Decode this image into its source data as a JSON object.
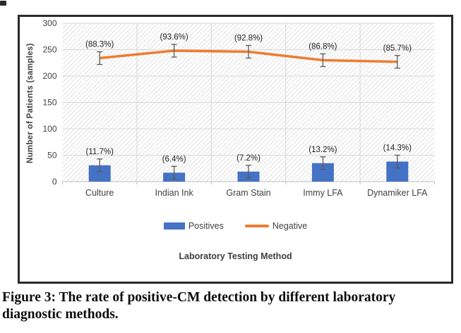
{
  "figure": {
    "caption": "Figure 3: The rate of positive-CM detection by different laboratory diagnostic methods."
  },
  "chart_data": {
    "type": "bar",
    "subtype": "combo-bar-line",
    "categories": [
      "Culture",
      "Indian Ink",
      "Gram Stain",
      "Immy LFA",
      "Dynamiker LFA"
    ],
    "series": [
      {
        "name": "Positives",
        "render_as": "bar",
        "color": "#4472C4",
        "values": [
          31,
          17,
          19,
          35,
          38
        ],
        "labels": [
          "(11.7%)",
          "(6.4%)",
          "(7.2%)",
          "(13.2%)",
          "(14.3%)"
        ],
        "error": 12
      },
      {
        "name": "Negative",
        "render_as": "line",
        "color": "#ED7D31",
        "values": [
          234,
          248,
          246,
          230,
          227
        ],
        "labels": [
          "(88.3%)",
          "(93.6%)",
          "(92.8%)",
          "(86.8%)",
          "(85.7%)"
        ],
        "error": 12
      }
    ],
    "title": "",
    "xlabel": "Laboratory Testing Method",
    "ylabel": "Number of Patients (samples)",
    "ylim": [
      0,
      300
    ],
    "ytick_step": 50,
    "grid": true,
    "legend_position": "bottom",
    "colors": {
      "gridline": "#d9d9d9",
      "axis_line": "#bfbfbf",
      "error_bar": "#595959",
      "tick_text": "#3f3f3f",
      "label_text": "#1f1f1f",
      "hatch": "#ebebeb"
    }
  }
}
